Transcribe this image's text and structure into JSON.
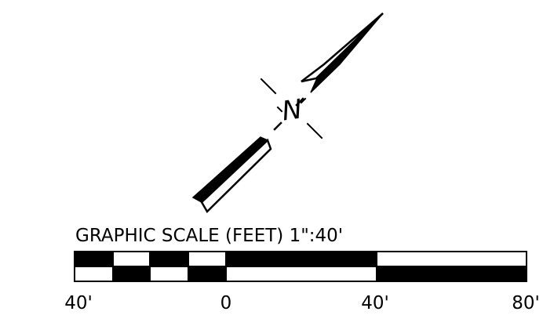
{
  "north_arrow": {
    "letter": "N"
  },
  "scale_bar": {
    "title": "GRAPHIC SCALE (FEET) 1\":40'",
    "tick_labels": [
      "40'",
      "0",
      "40'",
      "80'"
    ],
    "colors": {
      "ink": "#000000",
      "paper": "#ffffff"
    }
  }
}
